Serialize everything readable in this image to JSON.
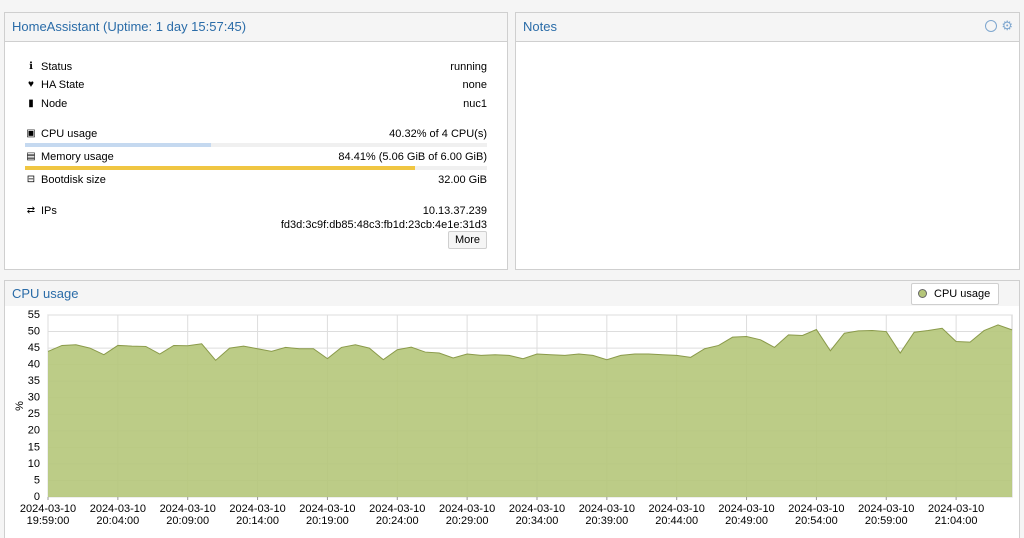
{
  "summary": {
    "title": "HomeAssistant (Uptime: 1 day 15:57:45)",
    "rows": [
      {
        "label": "Status",
        "value": "running"
      },
      {
        "label": "HA State",
        "value": "none"
      },
      {
        "label": "Node",
        "value": "nuc1"
      }
    ],
    "cpu": {
      "label": "CPU usage",
      "value": "40.32% of 4 CPU(s)",
      "bar_percent": 40.32
    },
    "memory": {
      "label": "Memory usage",
      "value": "84.41% (5.06 GiB of 6.00 GiB)",
      "bar_percent": 84.41
    },
    "bootdisk": {
      "label": "Bootdisk size",
      "value": "32.00 GiB"
    },
    "ips": {
      "label": "IPs",
      "values": [
        "10.13.37.239",
        "fd3d:3c9f:db85:48c3:fb1d:23cb:4e1e:31d3"
      ]
    },
    "button": "More"
  },
  "notes": {
    "title": "Notes"
  },
  "chart_data": {
    "type": "area",
    "title": "CPU usage",
    "y_label": "%",
    "series": [
      {
        "name": "CPU usage",
        "color": "#b5c67a",
        "line_color": "#8a9a4a",
        "values": [
          44,
          45.8,
          46,
          45,
          43,
          45.8,
          45.6,
          45.5,
          43.2,
          45.8,
          45.7,
          46.3,
          41.3,
          45,
          45.6,
          44.8,
          44,
          45.2,
          44.8,
          44.8,
          41.8,
          45.2,
          46,
          45,
          41.5,
          44.5,
          45.3,
          43.8,
          43.5,
          42,
          43.2,
          42.8,
          43,
          42.8,
          41.8,
          43.2,
          43,
          42.8,
          43.2,
          42.8,
          41.5,
          42.8,
          43.2,
          43.2,
          43,
          42.8,
          42.2,
          44.8,
          45.8,
          48.3,
          48.5,
          47.5,
          45.2,
          49,
          48.8,
          50.6,
          44.2,
          49.5,
          50.2,
          50.3,
          50,
          43.5,
          49.8,
          50.3,
          51,
          47,
          46.8,
          50.3,
          52,
          50.5
        ]
      }
    ],
    "x": [
      "2024-03-10 19:59:00",
      "2024-03-10 20:00:00",
      "2024-03-10 20:01:00",
      "2024-03-10 20:02:00",
      "2024-03-10 20:03:00",
      "2024-03-10 20:04:00",
      "2024-03-10 20:05:00",
      "2024-03-10 20:06:00",
      "2024-03-10 20:07:00",
      "2024-03-10 20:08:00",
      "2024-03-10 20:09:00",
      "2024-03-10 20:10:00",
      "2024-03-10 20:11:00",
      "2024-03-10 20:12:00",
      "2024-03-10 20:13:00",
      "2024-03-10 20:14:00",
      "2024-03-10 20:15:00",
      "2024-03-10 20:16:00",
      "2024-03-10 20:17:00",
      "2024-03-10 20:18:00",
      "2024-03-10 20:19:00",
      "2024-03-10 20:20:00",
      "2024-03-10 20:21:00",
      "2024-03-10 20:22:00",
      "2024-03-10 20:23:00",
      "2024-03-10 20:24:00",
      "2024-03-10 20:25:00",
      "2024-03-10 20:26:00",
      "2024-03-10 20:27:00",
      "2024-03-10 20:28:00",
      "2024-03-10 20:29:00",
      "2024-03-10 20:30:00",
      "2024-03-10 20:31:00",
      "2024-03-10 20:32:00",
      "2024-03-10 20:33:00",
      "2024-03-10 20:34:00",
      "2024-03-10 20:35:00",
      "2024-03-10 20:36:00",
      "2024-03-10 20:37:00",
      "2024-03-10 20:38:00",
      "2024-03-10 20:39:00",
      "2024-03-10 20:40:00",
      "2024-03-10 20:41:00",
      "2024-03-10 20:42:00",
      "2024-03-10 20:43:00",
      "2024-03-10 20:44:00",
      "2024-03-10 20:45:00",
      "2024-03-10 20:46:00",
      "2024-03-10 20:47:00",
      "2024-03-10 20:48:00",
      "2024-03-10 20:49:00",
      "2024-03-10 20:50:00",
      "2024-03-10 20:51:00",
      "2024-03-10 20:52:00",
      "2024-03-10 20:53:00",
      "2024-03-10 20:54:00",
      "2024-03-10 20:55:00",
      "2024-03-10 20:56:00",
      "2024-03-10 20:57:00",
      "2024-03-10 20:58:00",
      "2024-03-10 20:59:00",
      "2024-03-10 21:00:00",
      "2024-03-10 21:01:00",
      "2024-03-10 21:02:00",
      "2024-03-10 21:03:00",
      "2024-03-10 21:04:00",
      "2024-03-10 21:05:00",
      "2024-03-10 21:06:00",
      "2024-03-10 21:07:00",
      "2024-03-10 21:08:00"
    ],
    "xlim": [
      "2024-03-10 19:59:00",
      "2024-03-10 21:08:00"
    ],
    "xticks": [
      "2024-03-10 19:59:00",
      "2024-03-10 20:04:00",
      "2024-03-10 20:09:00",
      "2024-03-10 20:14:00",
      "2024-03-10 20:19:00",
      "2024-03-10 20:24:00",
      "2024-03-10 20:29:00",
      "2024-03-10 20:34:00",
      "2024-03-10 20:39:00",
      "2024-03-10 20:44:00",
      "2024-03-10 20:49:00",
      "2024-03-10 20:54:00",
      "2024-03-10 20:59:00",
      "2024-03-10 21:04:00"
    ],
    "ylim": [
      0,
      55
    ],
    "yticks": [
      0,
      5,
      10,
      15,
      20,
      25,
      30,
      35,
      40,
      45,
      50,
      55
    ],
    "grid": true,
    "legend": "top-right"
  }
}
